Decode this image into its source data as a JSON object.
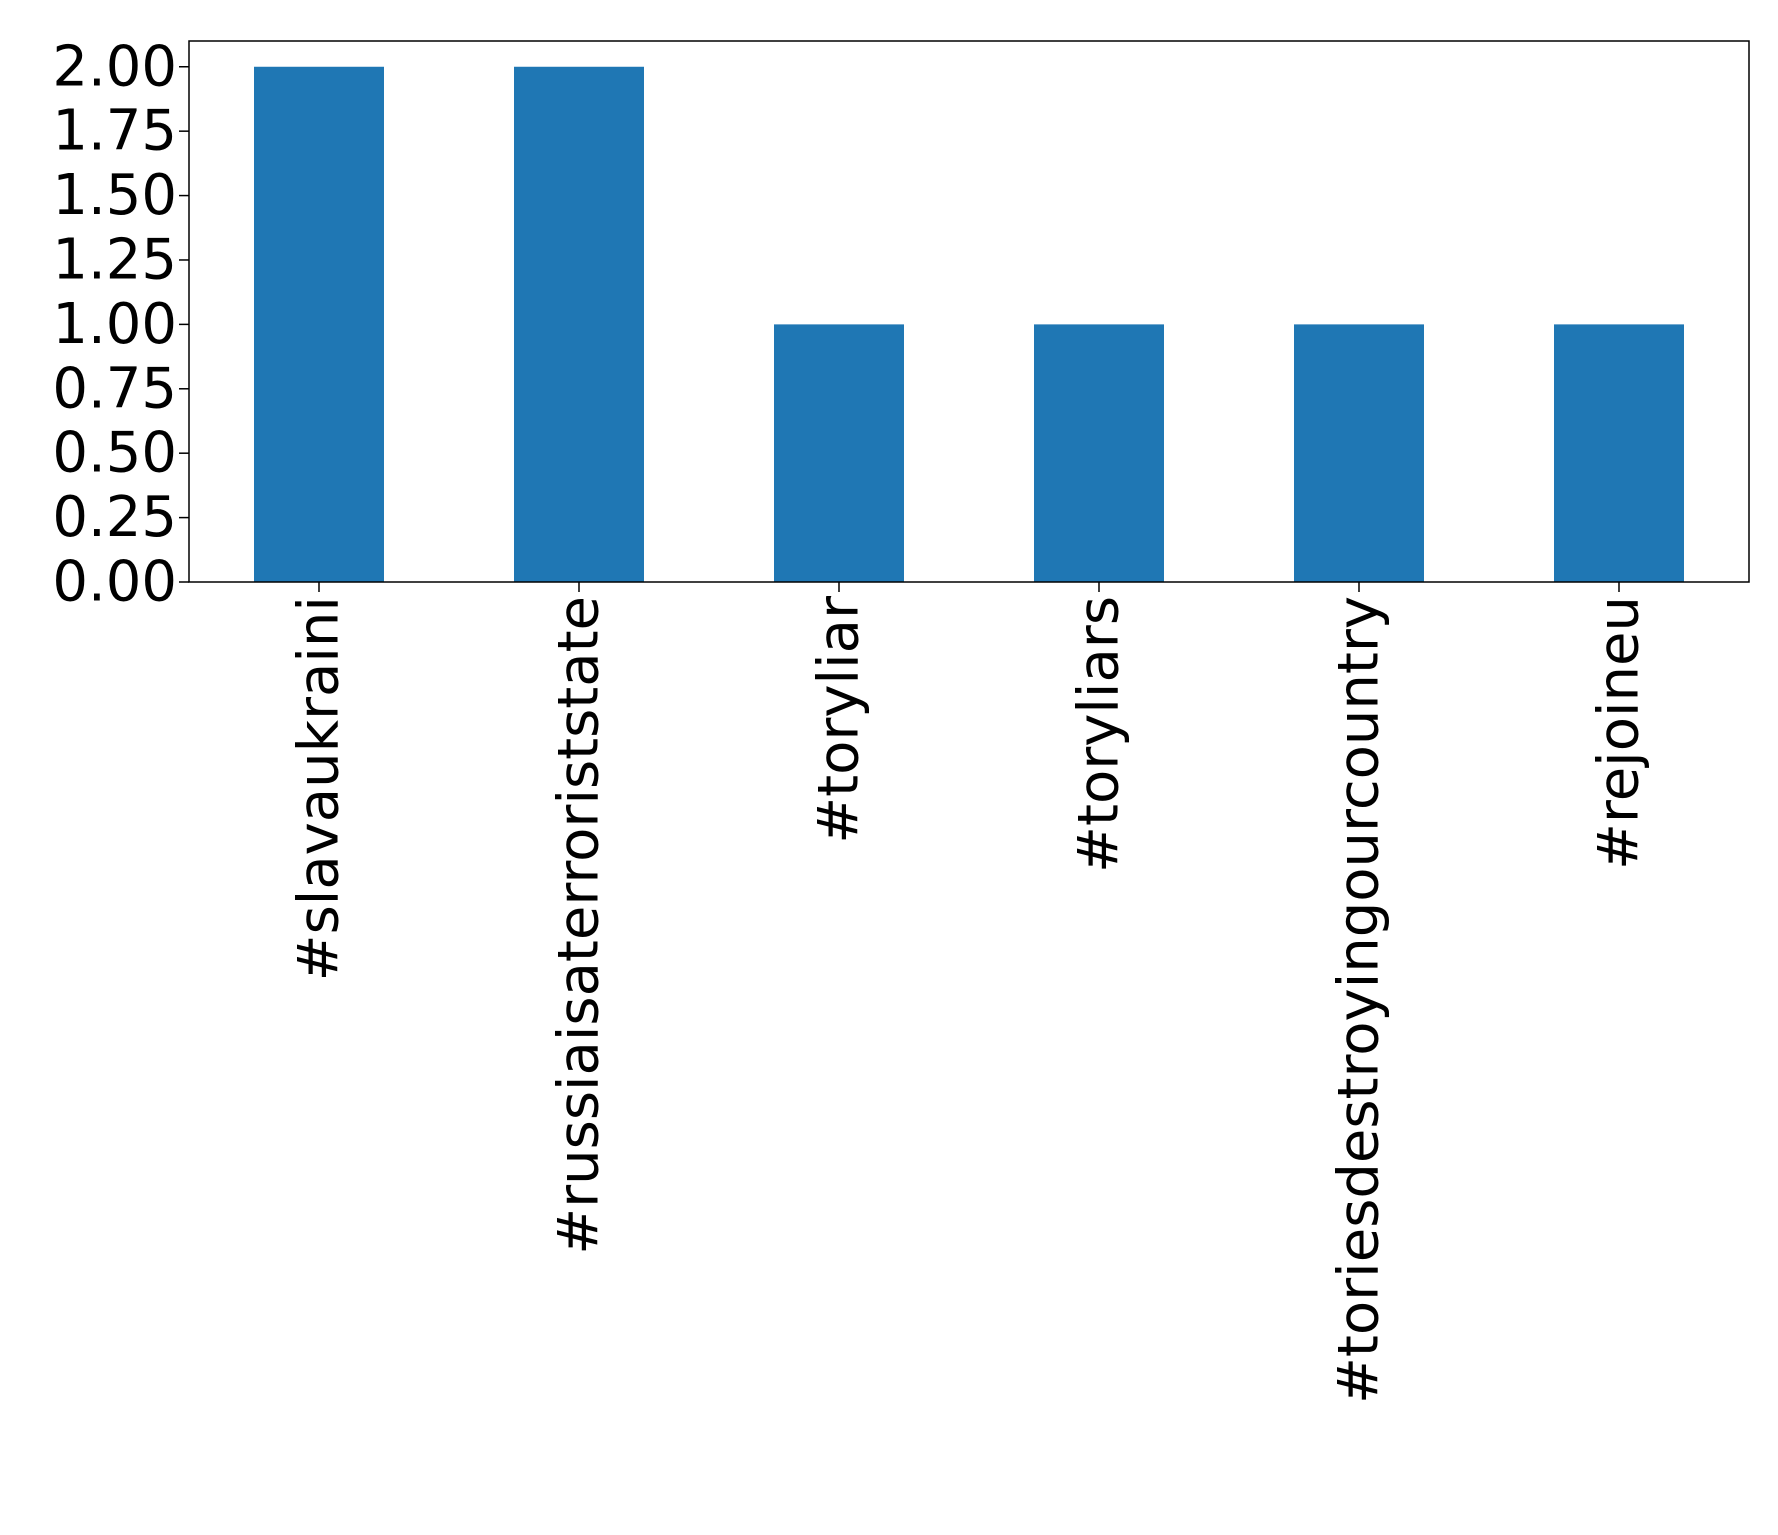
{
  "chart_data": {
    "type": "bar",
    "title": "",
    "xlabel": "",
    "ylabel": "",
    "categories": [
      "#slavaukraini",
      "#russiaisaterroriststate",
      "#toryliar",
      "#toryliars",
      "#toriesdestroyingourcountry",
      "#rejoineu"
    ],
    "values": [
      2,
      2,
      1,
      1,
      1,
      1
    ],
    "ylim": [
      0,
      2.1
    ],
    "yticks": [
      "0.00",
      "0.25",
      "0.50",
      "0.75",
      "1.00",
      "1.25",
      "1.50",
      "1.75",
      "2.00"
    ],
    "grid": false,
    "bar_color": "#1f77b4"
  }
}
